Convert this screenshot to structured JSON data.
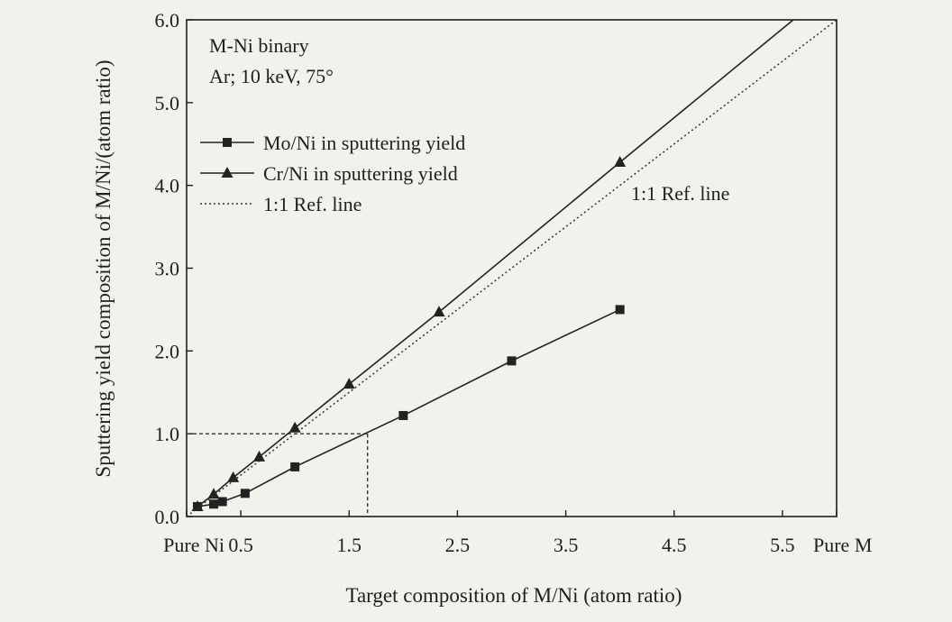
{
  "chart_data": {
    "type": "line",
    "annotations": [
      "M-Ni binary",
      "Ar; 10 keV, 75°",
      "1:1 Ref. line"
    ],
    "xlabel": "Target composition of M/Ni (atom ratio)",
    "ylabel": "Sputtering yield composition of M/Ni/(atom ratio)",
    "xlim": [
      0,
      6.0
    ],
    "ylim": [
      0,
      6.0
    ],
    "x_ticks": [
      {
        "value": 0,
        "label": "Pure Ni"
      },
      {
        "value": 0.5,
        "label": "0.5"
      },
      {
        "value": 1.5,
        "label": "1.5"
      },
      {
        "value": 2.5,
        "label": "2.5"
      },
      {
        "value": 3.5,
        "label": "3.5"
      },
      {
        "value": 4.5,
        "label": "4.5"
      },
      {
        "value": 5.5,
        "label": "5.5"
      },
      {
        "value": 6.0,
        "label": "Pure M"
      }
    ],
    "y_ticks": [
      {
        "value": 0,
        "label": "0.0"
      },
      {
        "value": 1,
        "label": "1.0"
      },
      {
        "value": 2,
        "label": "2.0"
      },
      {
        "value": 3,
        "label": "3.0"
      },
      {
        "value": 4,
        "label": "4.0"
      },
      {
        "value": 5,
        "label": "5.0"
      },
      {
        "value": 6,
        "label": "6.0"
      }
    ],
    "legend_position": "upper-left",
    "series": [
      {
        "name": "Mo/Ni in sputtering yield",
        "marker": "square",
        "line": "solid",
        "color": "#222222",
        "x": [
          0.1,
          0.25,
          0.33,
          0.54,
          1.0,
          2.0,
          3.0,
          4.0
        ],
        "y": [
          0.12,
          0.15,
          0.18,
          0.28,
          0.6,
          1.22,
          1.88,
          2.5
        ]
      },
      {
        "name": "Cr/Ni in sputtering yield",
        "marker": "triangle",
        "line": "solid",
        "color": "#222222",
        "x": [
          0.1,
          0.25,
          0.43,
          0.67,
          1.0,
          1.5,
          2.33,
          4.0,
          5.6
        ],
        "y": [
          0.12,
          0.27,
          0.47,
          0.72,
          1.07,
          1.6,
          2.47,
          4.28,
          6.0
        ],
        "marker_count": 8
      },
      {
        "name": "1:1 Ref. line",
        "marker": "none",
        "line": "dotted",
        "color": "#333333",
        "x": [
          0,
          6.0
        ],
        "y": [
          0,
          6.0
        ]
      }
    ],
    "guide_lines": [
      {
        "from": [
          0,
          1.0
        ],
        "to": [
          1.67,
          1.0
        ]
      },
      {
        "from": [
          1.67,
          1.0
        ],
        "to": [
          1.67,
          0
        ]
      }
    ]
  }
}
